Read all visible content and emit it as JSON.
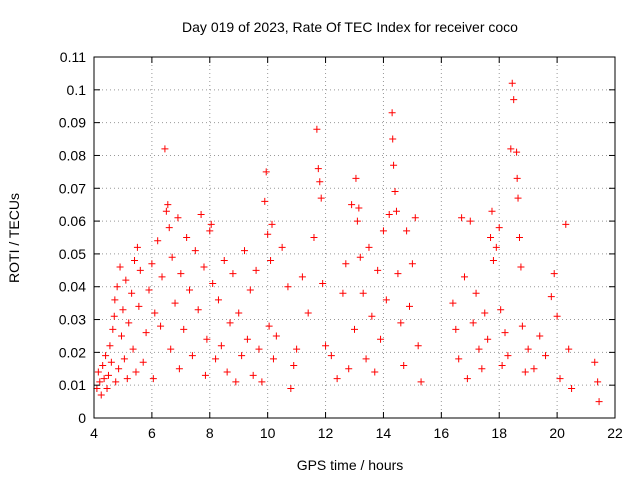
{
  "chart_data": {
    "type": "scatter",
    "title": "Day 019 of 2023, Rate Of TEC Index for receiver coco",
    "xlabel": "GPS time / hours",
    "ylabel": "ROTI / TECUs",
    "xlim": [
      4,
      22
    ],
    "ylim": [
      0,
      0.11
    ],
    "xticks": [
      "4",
      "6",
      "8",
      "10",
      "12",
      "14",
      "16",
      "18",
      "20",
      "22"
    ],
    "yticks": [
      "0",
      "0.01",
      "0.02",
      "0.03",
      "0.04",
      "0.05",
      "0.06",
      "0.07",
      "0.08",
      "0.09",
      "0.1",
      "0.11"
    ],
    "grid": true,
    "legend": "none",
    "marker": "plus",
    "marker_color": "#ff0000",
    "series": [
      {
        "points": [
          [
            4.1,
            0.009
          ],
          [
            4.15,
            0.014
          ],
          [
            4.2,
            0.011
          ],
          [
            4.25,
            0.007
          ],
          [
            4.3,
            0.016
          ],
          [
            4.35,
            0.012
          ],
          [
            4.4,
            0.019
          ],
          [
            4.45,
            0.009
          ],
          [
            4.5,
            0.013
          ],
          [
            4.55,
            0.022
          ],
          [
            4.6,
            0.017
          ],
          [
            4.65,
            0.027
          ],
          [
            4.7,
            0.031
          ],
          [
            4.72,
            0.036
          ],
          [
            4.75,
            0.011
          ],
          [
            4.8,
            0.04
          ],
          [
            4.85,
            0.015
          ],
          [
            4.9,
            0.046
          ],
          [
            4.95,
            0.025
          ],
          [
            5.0,
            0.033
          ],
          [
            5.05,
            0.018
          ],
          [
            5.1,
            0.042
          ],
          [
            5.15,
            0.012
          ],
          [
            5.2,
            0.029
          ],
          [
            5.3,
            0.038
          ],
          [
            5.35,
            0.021
          ],
          [
            5.4,
            0.048
          ],
          [
            5.45,
            0.014
          ],
          [
            5.5,
            0.052
          ],
          [
            5.55,
            0.034
          ],
          [
            5.6,
            0.045
          ],
          [
            5.7,
            0.017
          ],
          [
            5.8,
            0.026
          ],
          [
            5.9,
            0.039
          ],
          [
            6.0,
            0.047
          ],
          [
            6.05,
            0.012
          ],
          [
            6.1,
            0.032
          ],
          [
            6.2,
            0.054
          ],
          [
            6.3,
            0.028
          ],
          [
            6.35,
            0.043
          ],
          [
            6.45,
            0.082
          ],
          [
            6.5,
            0.063
          ],
          [
            6.55,
            0.065
          ],
          [
            6.6,
            0.058
          ],
          [
            6.65,
            0.021
          ],
          [
            6.7,
            0.049
          ],
          [
            6.8,
            0.035
          ],
          [
            6.9,
            0.061
          ],
          [
            6.95,
            0.015
          ],
          [
            7.0,
            0.044
          ],
          [
            7.1,
            0.027
          ],
          [
            7.2,
            0.055
          ],
          [
            7.3,
            0.039
          ],
          [
            7.4,
            0.019
          ],
          [
            7.5,
            0.051
          ],
          [
            7.6,
            0.033
          ],
          [
            7.7,
            0.062
          ],
          [
            7.8,
            0.046
          ],
          [
            7.85,
            0.013
          ],
          [
            7.9,
            0.024
          ],
          [
            8.0,
            0.057
          ],
          [
            8.05,
            0.059
          ],
          [
            8.1,
            0.041
          ],
          [
            8.2,
            0.018
          ],
          [
            8.3,
            0.036
          ],
          [
            8.4,
            0.022
          ],
          [
            8.5,
            0.048
          ],
          [
            8.6,
            0.014
          ],
          [
            8.7,
            0.029
          ],
          [
            8.8,
            0.044
          ],
          [
            8.9,
            0.011
          ],
          [
            9.0,
            0.032
          ],
          [
            9.1,
            0.019
          ],
          [
            9.2,
            0.051
          ],
          [
            9.3,
            0.024
          ],
          [
            9.4,
            0.039
          ],
          [
            9.5,
            0.013
          ],
          [
            9.6,
            0.045
          ],
          [
            9.7,
            0.021
          ],
          [
            9.8,
            0.011
          ],
          [
            9.9,
            0.066
          ],
          [
            9.95,
            0.075
          ],
          [
            10.0,
            0.056
          ],
          [
            10.05,
            0.028
          ],
          [
            10.1,
            0.048
          ],
          [
            10.15,
            0.059
          ],
          [
            10.2,
            0.018
          ],
          [
            10.3,
            0.025
          ],
          [
            10.5,
            0.052
          ],
          [
            10.7,
            0.04
          ],
          [
            10.8,
            0.009
          ],
          [
            10.9,
            0.016
          ],
          [
            11.0,
            0.021
          ],
          [
            11.2,
            0.043
          ],
          [
            11.4,
            0.032
          ],
          [
            11.6,
            0.055
          ],
          [
            11.7,
            0.088
          ],
          [
            11.75,
            0.076
          ],
          [
            11.8,
            0.072
          ],
          [
            11.85,
            0.067
          ],
          [
            11.9,
            0.041
          ],
          [
            12.0,
            0.022
          ],
          [
            12.2,
            0.019
          ],
          [
            12.4,
            0.012
          ],
          [
            12.6,
            0.038
          ],
          [
            12.7,
            0.047
          ],
          [
            12.8,
            0.015
          ],
          [
            12.9,
            0.065
          ],
          [
            13.0,
            0.027
          ],
          [
            13.05,
            0.073
          ],
          [
            13.1,
            0.06
          ],
          [
            13.15,
            0.064
          ],
          [
            13.2,
            0.049
          ],
          [
            13.3,
            0.038
          ],
          [
            13.4,
            0.018
          ],
          [
            13.5,
            0.052
          ],
          [
            13.6,
            0.031
          ],
          [
            13.7,
            0.014
          ],
          [
            13.8,
            0.045
          ],
          [
            13.9,
            0.024
          ],
          [
            14.0,
            0.057
          ],
          [
            14.1,
            0.036
          ],
          [
            14.2,
            0.062
          ],
          [
            14.3,
            0.093
          ],
          [
            14.32,
            0.085
          ],
          [
            14.35,
            0.077
          ],
          [
            14.4,
            0.069
          ],
          [
            14.45,
            0.063
          ],
          [
            14.5,
            0.044
          ],
          [
            14.6,
            0.029
          ],
          [
            14.7,
            0.016
          ],
          [
            14.8,
            0.057
          ],
          [
            14.9,
            0.034
          ],
          [
            15.0,
            0.047
          ],
          [
            15.1,
            0.061
          ],
          [
            15.2,
            0.022
          ],
          [
            15.3,
            0.011
          ],
          [
            16.4,
            0.035
          ],
          [
            16.5,
            0.027
          ],
          [
            16.6,
            0.018
          ],
          [
            16.7,
            0.061
          ],
          [
            16.8,
            0.043
          ],
          [
            16.9,
            0.012
          ],
          [
            17.0,
            0.06
          ],
          [
            17.1,
            0.029
          ],
          [
            17.2,
            0.038
          ],
          [
            17.3,
            0.021
          ],
          [
            17.4,
            0.015
          ],
          [
            17.5,
            0.032
          ],
          [
            17.6,
            0.024
          ],
          [
            17.7,
            0.055
          ],
          [
            17.75,
            0.063
          ],
          [
            17.8,
            0.048
          ],
          [
            17.9,
            0.052
          ],
          [
            18.0,
            0.058
          ],
          [
            18.05,
            0.033
          ],
          [
            18.1,
            0.016
          ],
          [
            18.2,
            0.026
          ],
          [
            18.3,
            0.019
          ],
          [
            18.4,
            0.082
          ],
          [
            18.45,
            0.102
          ],
          [
            18.5,
            0.097
          ],
          [
            18.6,
            0.081
          ],
          [
            18.62,
            0.073
          ],
          [
            18.65,
            0.067
          ],
          [
            18.7,
            0.055
          ],
          [
            18.75,
            0.046
          ],
          [
            18.8,
            0.028
          ],
          [
            18.9,
            0.014
          ],
          [
            19.0,
            0.021
          ],
          [
            19.2,
            0.015
          ],
          [
            19.4,
            0.025
          ],
          [
            19.6,
            0.019
          ],
          [
            19.8,
            0.037
          ],
          [
            19.9,
            0.044
          ],
          [
            20.0,
            0.031
          ],
          [
            20.1,
            0.012
          ],
          [
            20.3,
            0.059
          ],
          [
            20.4,
            0.021
          ],
          [
            20.5,
            0.009
          ],
          [
            21.3,
            0.017
          ],
          [
            21.4,
            0.011
          ],
          [
            21.45,
            0.005
          ]
        ]
      }
    ]
  }
}
